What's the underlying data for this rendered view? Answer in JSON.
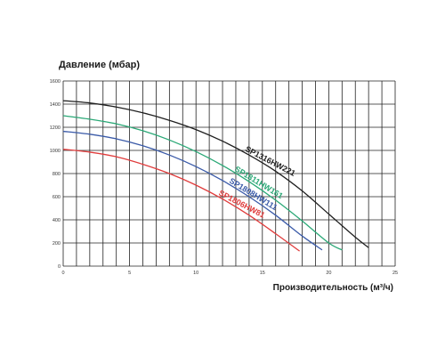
{
  "chart_data": {
    "type": "line",
    "ylabel": "Давление (мбар)",
    "xlabel": "Производительность (м³/ч)",
    "xlim": [
      0,
      25
    ],
    "ylim": [
      0,
      1600
    ],
    "xticks": [
      "0",
      "5",
      "10",
      "15",
      "20",
      "25"
    ],
    "yticks": [
      "0",
      "200",
      "400",
      "600",
      "800",
      "1000",
      "1200",
      "1400",
      "1600"
    ],
    "grid": true,
    "series": [
      {
        "name": "SP1316HW221",
        "color": "#1f1f1f",
        "x": [
          0,
          2,
          4,
          6,
          8,
          10,
          12,
          14,
          16,
          18,
          20,
          22,
          23
        ],
        "y": [
          1430,
          1410,
          1375,
          1325,
          1260,
          1180,
          1080,
          960,
          820,
          650,
          450,
          250,
          160
        ]
      },
      {
        "name": "SP1811HW161",
        "color": "#2aa876",
        "x": [
          0,
          2,
          4,
          6,
          8,
          10,
          12,
          14,
          16,
          18,
          20,
          21
        ],
        "y": [
          1300,
          1270,
          1230,
          1170,
          1090,
          990,
          870,
          730,
          570,
          390,
          200,
          140
        ]
      },
      {
        "name": "SP1808HW111",
        "color": "#3a5aa8",
        "x": [
          0,
          2,
          4,
          6,
          8,
          10,
          12,
          14,
          16,
          18,
          19.5
        ],
        "y": [
          1165,
          1140,
          1100,
          1040,
          960,
          860,
          740,
          600,
          440,
          260,
          140
        ]
      },
      {
        "name": "SP1806HW81",
        "color": "#e03c3c",
        "x": [
          0,
          2,
          4,
          6,
          8,
          10,
          12,
          14,
          16,
          17.8
        ],
        "y": [
          1010,
          985,
          945,
          880,
          800,
          700,
          580,
          440,
          280,
          130
        ]
      }
    ]
  }
}
